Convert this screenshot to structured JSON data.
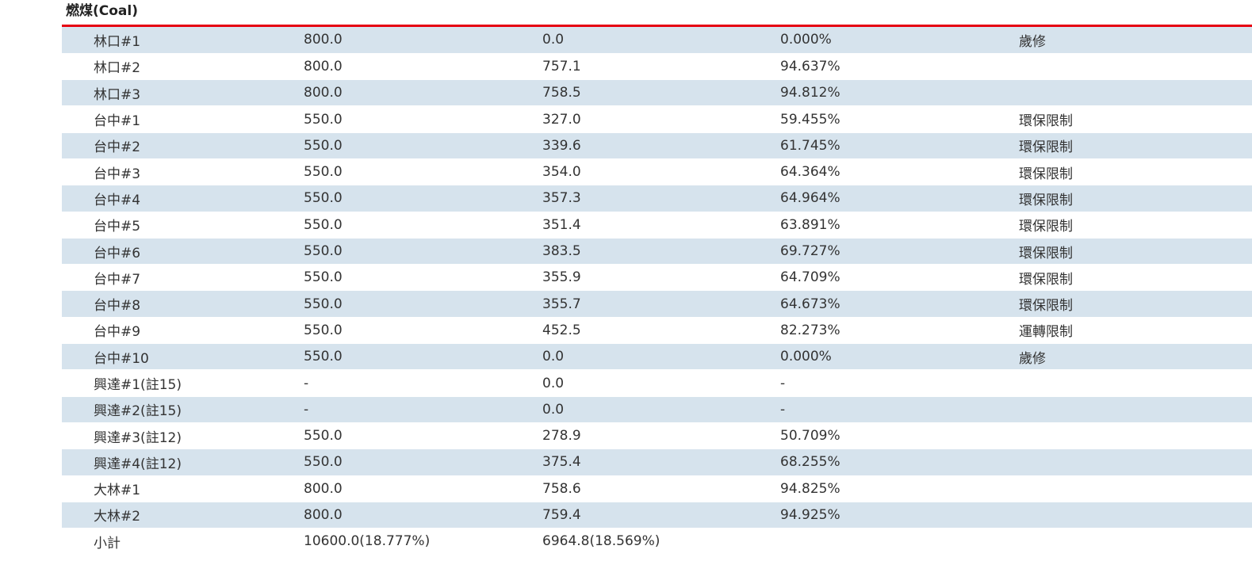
{
  "section_title": "燃煤(Coal)",
  "rows": [
    {
      "unit": "林口#1",
      "capacity": "800.0",
      "generation": "0.0",
      "ratio": "0.000%",
      "note": "歲修"
    },
    {
      "unit": "林口#2",
      "capacity": "800.0",
      "generation": "757.1",
      "ratio": "94.637%",
      "note": ""
    },
    {
      "unit": "林口#3",
      "capacity": "800.0",
      "generation": "758.5",
      "ratio": "94.812%",
      "note": ""
    },
    {
      "unit": "台中#1",
      "capacity": "550.0",
      "generation": "327.0",
      "ratio": "59.455%",
      "note": "環保限制"
    },
    {
      "unit": "台中#2",
      "capacity": "550.0",
      "generation": "339.6",
      "ratio": "61.745%",
      "note": "環保限制"
    },
    {
      "unit": "台中#3",
      "capacity": "550.0",
      "generation": "354.0",
      "ratio": "64.364%",
      "note": "環保限制"
    },
    {
      "unit": "台中#4",
      "capacity": "550.0",
      "generation": "357.3",
      "ratio": "64.964%",
      "note": "環保限制"
    },
    {
      "unit": "台中#5",
      "capacity": "550.0",
      "generation": "351.4",
      "ratio": "63.891%",
      "note": "環保限制"
    },
    {
      "unit": "台中#6",
      "capacity": "550.0",
      "generation": "383.5",
      "ratio": "69.727%",
      "note": "環保限制"
    },
    {
      "unit": "台中#7",
      "capacity": "550.0",
      "generation": "355.9",
      "ratio": "64.709%",
      "note": "環保限制"
    },
    {
      "unit": "台中#8",
      "capacity": "550.0",
      "generation": "355.7",
      "ratio": "64.673%",
      "note": "環保限制"
    },
    {
      "unit": "台中#9",
      "capacity": "550.0",
      "generation": "452.5",
      "ratio": "82.273%",
      "note": "運轉限制"
    },
    {
      "unit": "台中#10",
      "capacity": "550.0",
      "generation": "0.0",
      "ratio": "0.000%",
      "note": "歲修"
    },
    {
      "unit": "興達#1(註15)",
      "capacity": "-",
      "generation": "0.0",
      "ratio": "-",
      "note": ""
    },
    {
      "unit": "興達#2(註15)",
      "capacity": "-",
      "generation": "0.0",
      "ratio": "-",
      "note": ""
    },
    {
      "unit": "興達#3(註12)",
      "capacity": "550.0",
      "generation": "278.9",
      "ratio": "50.709%",
      "note": ""
    },
    {
      "unit": "興達#4(註12)",
      "capacity": "550.0",
      "generation": "375.4",
      "ratio": "68.255%",
      "note": ""
    },
    {
      "unit": "大林#1",
      "capacity": "800.0",
      "generation": "758.6",
      "ratio": "94.825%",
      "note": ""
    },
    {
      "unit": "大林#2",
      "capacity": "800.0",
      "generation": "759.4",
      "ratio": "94.925%",
      "note": ""
    }
  ],
  "subtotal": {
    "label": "小計",
    "capacity": "10600.0(18.777%)",
    "generation": "6964.8(18.569%)",
    "ratio": "",
    "note": ""
  },
  "colors": {
    "accent_line": "#e60012",
    "row_stripe": "#d6e3ed"
  }
}
